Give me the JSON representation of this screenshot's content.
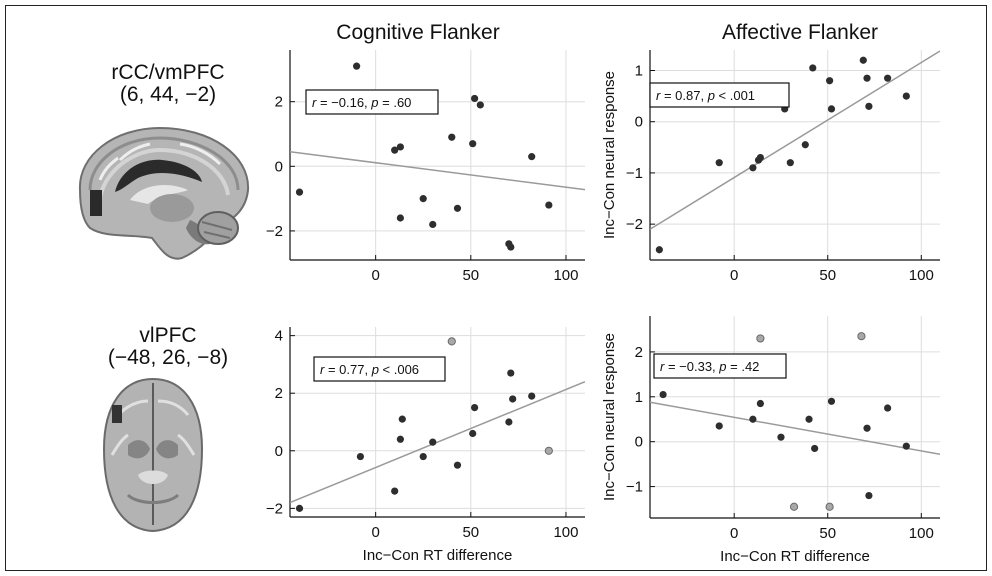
{
  "columns": [
    "Cognitive Flanker",
    "Affective Flanker"
  ],
  "rows": [
    {
      "region": "rCC/vmPFC",
      "coords": "(6, 44, −2)"
    },
    {
      "region": "vlPFC",
      "coords": "(−48, 26, −8)"
    }
  ],
  "y_axis_label": "Inc−Con neural response",
  "x_axis_label": "Inc−Con RT difference",
  "chart_data": [
    {
      "type": "scatter",
      "panel": "rCC/vmPFC – Cognitive Flanker",
      "xlim": [
        -45,
        110
      ],
      "ylim": [
        -2.9,
        3.6
      ],
      "xticks": [
        0,
        50,
        100
      ],
      "yticks": [
        -2,
        0,
        2
      ],
      "grid": true,
      "annotation": {
        "r": "r = −0.16,",
        "p": "p = .60"
      },
      "fit": {
        "x": [
          -45,
          110
        ],
        "y": [
          0.45,
          -0.72
        ]
      },
      "points": [
        {
          "x": -40,
          "y": -0.8
        },
        {
          "x": -10,
          "y": 3.1
        },
        {
          "x": 10,
          "y": 0.5
        },
        {
          "x": 13,
          "y": 0.6
        },
        {
          "x": 13,
          "y": -1.6
        },
        {
          "x": 25,
          "y": -1.0
        },
        {
          "x": 30,
          "y": -1.8
        },
        {
          "x": 40,
          "y": 0.9
        },
        {
          "x": 43,
          "y": -1.3
        },
        {
          "x": 51,
          "y": 0.7
        },
        {
          "x": 52,
          "y": 2.1
        },
        {
          "x": 55,
          "y": 1.9
        },
        {
          "x": 70,
          "y": -2.4
        },
        {
          "x": 71,
          "y": -2.5
        },
        {
          "x": 82,
          "y": 0.3
        },
        {
          "x": 91,
          "y": -1.2
        }
      ]
    },
    {
      "type": "scatter",
      "panel": "rCC/vmPFC – Affective Flanker",
      "xlim": [
        -45,
        110
      ],
      "ylim": [
        -2.7,
        1.4
      ],
      "xticks": [
        0,
        50,
        100
      ],
      "yticks": [
        -2,
        -1,
        0,
        1
      ],
      "grid": true,
      "annotation": {
        "r": "r = 0.87,",
        "p": "p < .001"
      },
      "y_label_shown": true,
      "fit": {
        "x": [
          -45,
          110
        ],
        "y": [
          -2.1,
          1.38
        ]
      },
      "points": [
        {
          "x": -40,
          "y": -2.5
        },
        {
          "x": -8,
          "y": -0.8
        },
        {
          "x": 10,
          "y": -0.9
        },
        {
          "x": 13,
          "y": -0.75
        },
        {
          "x": 14,
          "y": -0.7
        },
        {
          "x": 27,
          "y": 0.25
        },
        {
          "x": 30,
          "y": -0.8
        },
        {
          "x": 38,
          "y": -0.45
        },
        {
          "x": 42,
          "y": 1.05
        },
        {
          "x": 51,
          "y": 0.8
        },
        {
          "x": 52,
          "y": 0.25
        },
        {
          "x": 69,
          "y": 1.2
        },
        {
          "x": 71,
          "y": 0.85
        },
        {
          "x": 72,
          "y": 0.3
        },
        {
          "x": 82,
          "y": 0.85
        },
        {
          "x": 92,
          "y": 0.5
        }
      ]
    },
    {
      "type": "scatter",
      "panel": "vlPFC – Cognitive Flanker",
      "xlim": [
        -45,
        110
      ],
      "ylim": [
        -2.3,
        4.3
      ],
      "xticks": [
        0,
        50,
        100
      ],
      "yticks": [
        -2,
        0,
        2,
        4
      ],
      "grid": true,
      "annotation": {
        "r": "r = 0.77,",
        "p": "p < .006"
      },
      "x_label_shown": true,
      "fit": {
        "x": [
          -45,
          110
        ],
        "y": [
          -1.8,
          2.4
        ]
      },
      "points": [
        {
          "x": -40,
          "y": -2.0
        },
        {
          "x": -8,
          "y": -0.2
        },
        {
          "x": 10,
          "y": -1.4
        },
        {
          "x": 13,
          "y": 0.4
        },
        {
          "x": 14,
          "y": 1.1
        },
        {
          "x": 25,
          "y": -0.2
        },
        {
          "x": 30,
          "y": 0.3
        },
        {
          "x": 43,
          "y": -0.5
        },
        {
          "x": 51,
          "y": 0.6
        },
        {
          "x": 52,
          "y": 1.5
        },
        {
          "x": 70,
          "y": 1.0
        },
        {
          "x": 71,
          "y": 2.7
        },
        {
          "x": 72,
          "y": 1.8
        },
        {
          "x": 82,
          "y": 1.9
        },
        {
          "x": 40,
          "y": 3.8,
          "gray": true
        },
        {
          "x": 91,
          "y": 0.0,
          "gray": true
        }
      ]
    },
    {
      "type": "scatter",
      "panel": "vlPFC – Affective Flanker",
      "xlim": [
        -45,
        110
      ],
      "ylim": [
        -1.7,
        2.8
      ],
      "xticks": [
        0,
        50,
        100
      ],
      "yticks": [
        -1,
        0,
        1,
        2
      ],
      "grid": true,
      "annotation": {
        "r": "r = −0.33,",
        "p": "p = .42"
      },
      "x_label_shown": true,
      "y_label_shown": true,
      "fit": {
        "x": [
          -45,
          110
        ],
        "y": [
          0.88,
          -0.28
        ]
      },
      "points": [
        {
          "x": -38,
          "y": 1.05
        },
        {
          "x": -8,
          "y": 0.35
        },
        {
          "x": 10,
          "y": 0.5
        },
        {
          "x": 14,
          "y": 0.85
        },
        {
          "x": 25,
          "y": 0.1
        },
        {
          "x": 40,
          "y": 0.5
        },
        {
          "x": 43,
          "y": -0.15
        },
        {
          "x": 52,
          "y": 0.9
        },
        {
          "x": 71,
          "y": 0.3
        },
        {
          "x": 82,
          "y": 0.75
        },
        {
          "x": 92,
          "y": -0.1
        },
        {
          "x": 72,
          "y": -1.2
        },
        {
          "x": 14,
          "y": 2.3,
          "gray": true
        },
        {
          "x": 68,
          "y": 2.35,
          "gray": true
        },
        {
          "x": 32,
          "y": -1.45,
          "gray": true
        },
        {
          "x": 51,
          "y": -1.45,
          "gray": true
        }
      ]
    }
  ]
}
